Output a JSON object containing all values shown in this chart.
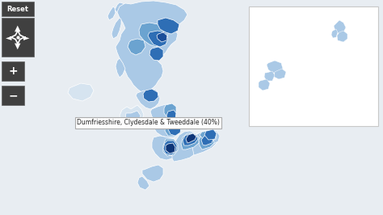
{
  "bg_color": "#e8edf2",
  "tooltip_text": "Dumfriesshire, Clydesdale & Tweeddale (40%)",
  "colors": {
    "very_light_blue": "#d6e4f0",
    "light_blue": "#aac9e6",
    "mid_blue": "#6ba3d0",
    "dark_blue": "#2e6eb5",
    "darker_blue": "#1a4e9a",
    "darkest_blue": "#0d3578",
    "border": "#ffffff",
    "inset_bg": "#ffffff",
    "inset_border": "#c8c8c8"
  },
  "ctrl": {
    "bg": "#404040",
    "fg": "#ffffff",
    "border": "#606060"
  }
}
